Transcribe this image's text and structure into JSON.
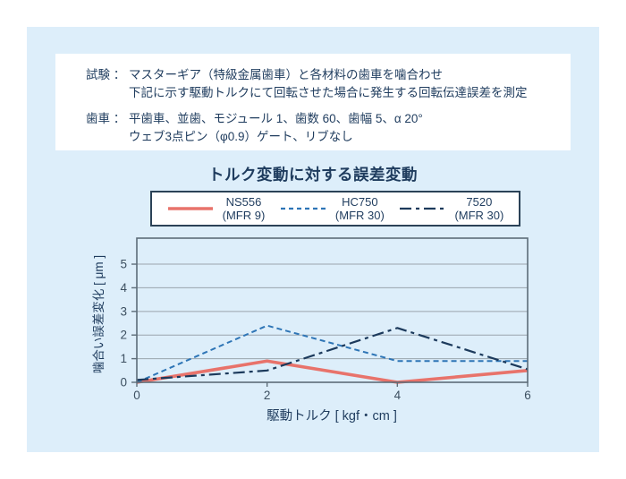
{
  "info": {
    "rows": [
      {
        "label": "試験 ：",
        "lines": [
          "マスターギア（特級金属歯車）と各材料の歯車を噛合わせ",
          "下記に示す駆動トルクにて回転させた場合に発生する回転伝達誤差を測定"
        ]
      },
      {
        "label": "歯車 ：",
        "lines": [
          "平歯車、並歯、モジュール 1、歯数 60、歯幅 5、α 20°",
          "ウェブ3点ピン（φ0.9）ゲート、リブなし"
        ]
      }
    ]
  },
  "chart_data": {
    "type": "line",
    "title": "トルク変動に対する誤差変動",
    "xlabel": "駆動トルク [ kgf・cm ]",
    "ylabel": "噛合い誤差変化 [ μm ]",
    "xlim": [
      0,
      6
    ],
    "ylim": [
      0,
      6.1
    ],
    "x_ticks": [
      0,
      2,
      4,
      6
    ],
    "y_ticks": [
      0,
      1,
      2,
      3,
      4,
      5
    ],
    "grid": "horizontal",
    "legend_position": "top",
    "series": [
      {
        "name": "NS556",
        "mfr": "(MFR 9)",
        "style": "solid",
        "color": "#e8736b",
        "x": [
          0,
          2,
          4,
          6
        ],
        "y": [
          0,
          0.9,
          0,
          0.5
        ]
      },
      {
        "name": "HC750",
        "mfr": "(MFR 30)",
        "style": "dashed",
        "color": "#2e75b6",
        "x": [
          0,
          2,
          4,
          6
        ],
        "y": [
          0,
          2.4,
          0.9,
          0.9
        ]
      },
      {
        "name": "7520",
        "mfr": "(MFR 30)",
        "style": "dashdot",
        "color": "#1c3a5c",
        "x": [
          0,
          2,
          4,
          6
        ],
        "y": [
          0.1,
          0.5,
          2.3,
          0.55
        ]
      }
    ]
  },
  "colors": {
    "page_bg": "#ffffff",
    "panel_bg": "#ddeefa",
    "box_bg": "#ffffff",
    "text": "#1f3c5e",
    "legend_border": "#2b4257",
    "plot_border": "#5d6d79",
    "grid": "#9aa4ac",
    "tick_text": "#3c4f60"
  }
}
